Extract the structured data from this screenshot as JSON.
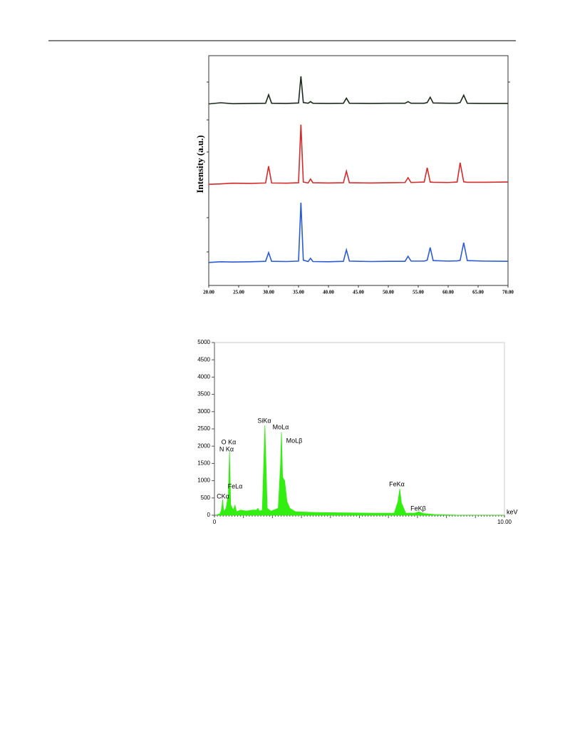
{
  "chart_data": [
    {
      "type": "line",
      "y_label": "Intensity (a.u.)",
      "x": [
        20,
        22,
        24,
        27,
        29.5,
        30,
        30.5,
        33,
        35,
        35.4,
        35.8,
        36.6,
        37,
        37.4,
        40,
        42.5,
        43,
        43.5,
        47,
        50,
        52.8,
        53.3,
        53.8,
        56,
        56.5,
        57,
        57.5,
        60,
        61.5,
        62,
        62.6,
        63.2,
        66,
        70
      ],
      "series": [
        {
          "color": "#1b2b1b",
          "values": [
            79,
            79.5,
            79.1,
            79.2,
            79.3,
            83,
            79.3,
            79.2,
            79.4,
            91,
            79.6,
            79.3,
            80,
            79.3,
            79.2,
            79.3,
            81.5,
            79.3,
            79.2,
            79.3,
            79.3,
            80,
            79.3,
            79.3,
            79.6,
            81.9,
            79.4,
            79.3,
            79.3,
            79.6,
            82.8,
            79.3,
            79.2,
            79.2
          ]
        },
        {
          "color": "#d62a2a",
          "values": [
            44,
            44.2,
            44.5,
            44.4,
            44.6,
            51.9,
            44.6,
            44.5,
            44.7,
            70,
            45,
            44.6,
            46.3,
            44.7,
            44.6,
            44.7,
            49.7,
            44.7,
            44.6,
            44.7,
            44.8,
            46.9,
            44.8,
            45,
            51.2,
            45,
            44.9,
            44.8,
            45,
            53.4,
            45.1,
            44.9,
            44.9,
            45
          ]
        },
        {
          "color": "#2a5bd6",
          "values": [
            10,
            10.3,
            10.2,
            10.3,
            10.5,
            14.3,
            10.5,
            10.4,
            10.6,
            36,
            11,
            10.4,
            11.8,
            10.4,
            10.3,
            10.5,
            15.5,
            10.6,
            10.4,
            10.5,
            10.5,
            12.7,
            10.6,
            10.6,
            11,
            16.5,
            10.8,
            10.6,
            10.7,
            10.9,
            18.6,
            10.8,
            10.6,
            10.5
          ]
        }
      ],
      "xlim": [
        20,
        70
      ],
      "xticks": [
        {
          "value": 20,
          "label": "20.00"
        },
        {
          "value": 25,
          "label": "25.00"
        },
        {
          "value": 30,
          "label": "30.00"
        },
        {
          "value": 35,
          "label": "35.00"
        },
        {
          "value": 40,
          "label": "40.00"
        },
        {
          "value": 45,
          "label": "45.00"
        },
        {
          "value": 50,
          "label": "50.00"
        },
        {
          "value": 55,
          "label": "55.00"
        },
        {
          "value": 60,
          "label": "60.00"
        },
        {
          "value": 65,
          "label": "65.00"
        },
        {
          "value": 70,
          "label": "70.00"
        }
      ],
      "ylim": [
        0,
        100
      ]
    },
    {
      "type": "area",
      "x_unit": "keV",
      "color": "#33ee11",
      "x": [
        0.05,
        0.2,
        0.25,
        0.28,
        0.32,
        0.4,
        0.48,
        0.52,
        0.56,
        0.65,
        0.71,
        0.76,
        0.9,
        1.1,
        1.3,
        1.45,
        1.5,
        1.55,
        1.65,
        1.74,
        1.82,
        1.95,
        2.2,
        2.28,
        2.31,
        2.35,
        2.42,
        2.5,
        2.6,
        2.8,
        3.5,
        4.5,
        5.5,
        6.2,
        6.33,
        6.39,
        6.45,
        6.6,
        6.9,
        7.05,
        7.2,
        7.6,
        8.5,
        10
      ],
      "values": [
        0,
        50,
        200,
        455,
        100,
        200,
        600,
        1840,
        300,
        150,
        290,
        100,
        150,
        120,
        150,
        150,
        200,
        120,
        150,
        2600,
        200,
        120,
        200,
        1500,
        2400,
        1100,
        1000,
        400,
        200,
        100,
        80,
        70,
        60,
        60,
        400,
        760,
        350,
        60,
        60,
        100,
        50,
        20,
        0,
        0
      ],
      "annotations": [
        "CKα",
        "N Kα",
        "O Kα",
        "FeLα",
        "SiKα",
        "MoLα",
        "MoLβ",
        "FeKα",
        "FeKβ"
      ],
      "xlim": [
        0,
        10
      ],
      "xticks": [
        0,
        {
          "value": 10,
          "label": "10.00"
        }
      ],
      "ylim": [
        0,
        5000
      ],
      "yticks": [
        0,
        500,
        1000,
        1500,
        2000,
        2500,
        3000,
        3500,
        4000,
        4500,
        5000
      ]
    }
  ]
}
